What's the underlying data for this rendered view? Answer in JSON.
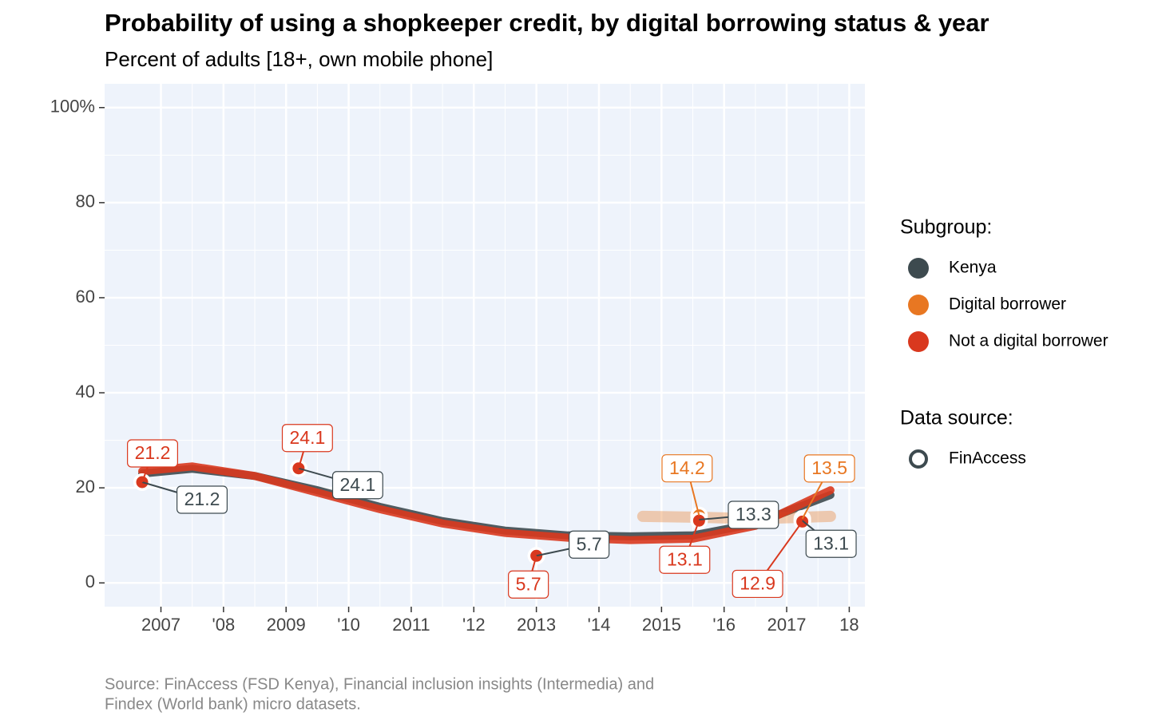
{
  "chart_data": {
    "type": "scatter",
    "title": "Probability of using a shopkeeper credit, by digital borrowing status & year",
    "subtitle": "Percent of adults [18+, own mobile phone]",
    "source": "Source: FinAccess (FSD Kenya), Financial inclusion insights (Intermedia) and",
    "source_line2": "Findex (World bank) micro datasets.",
    "xlim": [
      2006.1,
      2018.25
    ],
    "xticks": [
      2007,
      {
        "value": 2008,
        "label": "'08"
      },
      2009,
      {
        "value": 2010,
        "label": "'10"
      },
      2011,
      {
        "value": 2012,
        "label": "'12"
      },
      2013,
      {
        "value": 2014,
        "label": "'14"
      },
      2015,
      {
        "value": 2016,
        "label": "'16"
      },
      2017,
      {
        "value": 2018,
        "label": "18"
      }
    ],
    "ylim": [
      -5,
      105
    ],
    "yticks": [
      0,
      20,
      40,
      60,
      80,
      {
        "value": 100,
        "label": "100%"
      }
    ],
    "grid": true,
    "legend_title": "Subgroup:",
    "shape_legend_title": "Data source:",
    "shape_legend": [
      "FinAccess"
    ],
    "series": [
      {
        "name": "Kenya",
        "color": "#3d4a4f",
        "x": [
          2006.7,
          2009.2,
          2013.0,
          2015.6,
          2017.25
        ],
        "values": [
          21.2,
          24.1,
          5.7,
          13.3,
          13.1
        ],
        "trend_x": [
          2006.7,
          2007.5,
          2008.5,
          2009.5,
          2010.5,
          2011.5,
          2012.5,
          2013.5,
          2014.5,
          2015.5,
          2016.5,
          2017.7
        ],
        "trend": [
          23,
          24,
          22.5,
          19.5,
          16,
          13,
          11,
          10,
          9.8,
          10,
          12.5,
          18.5
        ]
      },
      {
        "name": "Digital borrower",
        "color": "#e87722",
        "x": [
          2015.6,
          2017.25
        ],
        "values": [
          14.2,
          13.5
        ],
        "trend_x": [
          2014.7,
          2015.6,
          2016.5,
          2017.7
        ],
        "trend": [
          14,
          13.8,
          13.5,
          14
        ]
      },
      {
        "name": "Not a digital borrower",
        "color": "#d9381e",
        "x": [
          2006.7,
          2009.2,
          2013.0,
          2015.6,
          2017.25
        ],
        "values": [
          21.2,
          24.1,
          5.7,
          13.1,
          12.9
        ],
        "trend_x": [
          2006.7,
          2007.5,
          2008.5,
          2009.5,
          2010.5,
          2011.5,
          2012.5,
          2013.5,
          2014.5,
          2015.5,
          2016.5,
          2017.7
        ],
        "trend": [
          23.5,
          24.5,
          22.5,
          19,
          15.5,
          12.5,
          10.5,
          9.5,
          9,
          9.3,
          12,
          19.5
        ]
      }
    ]
  }
}
